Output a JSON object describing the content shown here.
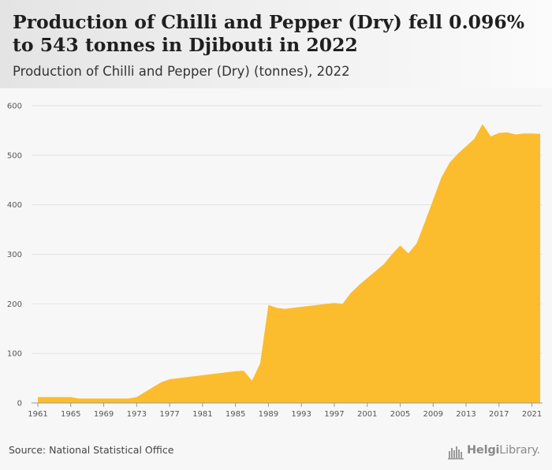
{
  "header": {
    "title": "Production of Chilli and Pepper (Dry) fell 0.096% to 543 tonnes in Djibouti in 2022",
    "subtitle": "Production of Chilli and Pepper (Dry) (tonnes), 2022"
  },
  "footer": {
    "source": "Source: National Statistical Office",
    "logo_bold": "Helgi",
    "logo_rest": "Library.",
    "logo_icon": "city-skyline-icon"
  },
  "chart_data": {
    "type": "area",
    "title": "",
    "xlabel": "",
    "ylabel": "",
    "ylim": [
      0,
      600
    ],
    "xlim": [
      1961,
      2022
    ],
    "yticks": [
      "0",
      "100",
      "200",
      "300",
      "400",
      "500",
      "600"
    ],
    "xticks": [
      "1961",
      "1965",
      "1969",
      "1973",
      "1977",
      "1981",
      "1985",
      "1989",
      "1993",
      "1997",
      "2001",
      "2005",
      "2009",
      "2013",
      "2017",
      "2021"
    ],
    "grid": true,
    "legend": "none",
    "color": "#fbbd2e",
    "series": [
      {
        "x": [
          1961,
          1962,
          1963,
          1964,
          1965,
          1966,
          1967,
          1968,
          1969,
          1970,
          1971,
          1972,
          1973,
          1974,
          1975,
          1976,
          1977,
          1978,
          1979,
          1980,
          1981,
          1982,
          1983,
          1984,
          1985,
          1986,
          1987,
          1988,
          1989,
          1990,
          1991,
          1992,
          1993,
          1994,
          1995,
          1996,
          1997,
          1998,
          1999,
          2000,
          2001,
          2002,
          2003,
          2004,
          2005,
          2006,
          2007,
          2008,
          2009,
          2010,
          2011,
          2012,
          2013,
          2014,
          2015,
          2016,
          2017,
          2018,
          2019,
          2020,
          2021,
          2022
        ],
        "values": [
          12,
          12,
          12,
          12,
          12,
          9,
          9,
          9,
          9,
          9,
          9,
          9,
          12,
          22,
          32,
          42,
          48,
          50,
          52,
          54,
          56,
          58,
          60,
          62,
          64,
          65,
          45,
          80,
          198,
          192,
          190,
          192,
          194,
          196,
          198,
          200,
          202,
          200,
          222,
          238,
          252,
          266,
          280,
          300,
          318,
          302,
          322,
          365,
          410,
          455,
          485,
          503,
          518,
          533,
          563,
          538,
          545,
          546,
          542,
          544,
          544,
          543
        ]
      }
    ]
  }
}
